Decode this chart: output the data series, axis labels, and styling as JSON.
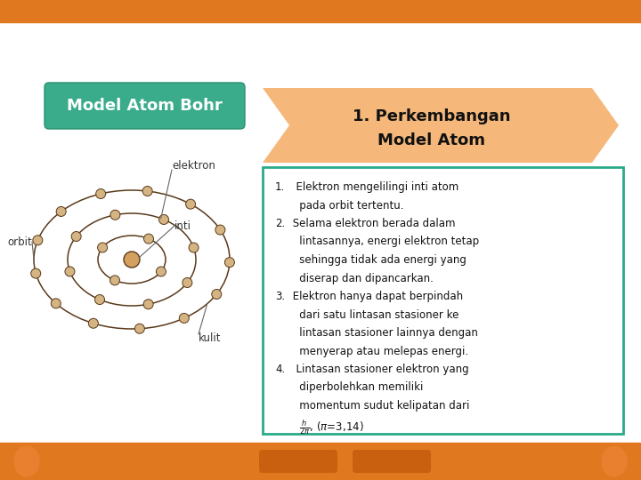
{
  "bg_color": "#ffffff",
  "top_bar_color": "#e07820",
  "bottom_bar_color": "#e07820",
  "title_box_color": "#3aac8c",
  "title_box_text": "Model Atom Bohr",
  "title_box_text_color": "#ffffff",
  "arrow_shape_color": "#f5b87a",
  "arrow_text_line1": "1. Perkembangan",
  "arrow_text_line2": "Model Atom",
  "arrow_text_color": "#111111",
  "content_box_border_color": "#2aaa8a",
  "content_box_bg": "#ffffff",
  "atom_orbit_color": "#5a3a1a",
  "atom_electron_color": "#d4b483",
  "atom_nucleus_color": "#d4a060",
  "label_color": "#333333",
  "bottom_deco_color": "#c86010",
  "bottom_circles_color": "#e88030"
}
